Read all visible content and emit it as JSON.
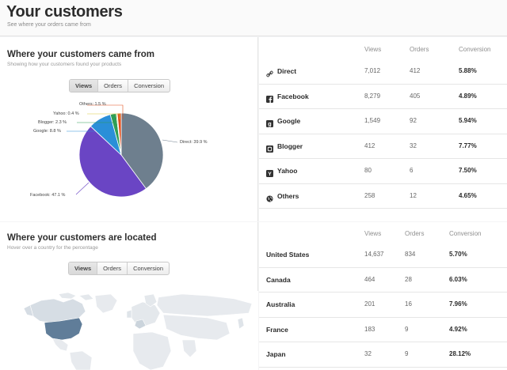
{
  "header": {
    "title": "Your customers",
    "subtitle": "See where your orders came from"
  },
  "sources": {
    "title": "Where your customers came from",
    "subtitle": "Showing how your customers found your products",
    "toggle": [
      "Views",
      "Orders",
      "Conversion"
    ],
    "active_toggle": "Views",
    "pie_labels": {
      "others": "Others: 1.5 %",
      "yahoo": "Yahoo: 0.4 %",
      "blogger": "Blogger: 2.3 %",
      "google": "Google: 8.8 %",
      "direct": "Direct: 39.9 %",
      "facebook": "Facebook: 47.1 %"
    },
    "columns": [
      "Views",
      "Orders",
      "Conversion"
    ],
    "rows": [
      {
        "name": "Direct",
        "icon": "link-icon",
        "views": "7,012",
        "orders": "412",
        "conversion": "5.88%"
      },
      {
        "name": "Facebook",
        "icon": "facebook-icon",
        "views": "8,279",
        "orders": "405",
        "conversion": "4.89%"
      },
      {
        "name": "Google",
        "icon": "google-icon",
        "views": "1,549",
        "orders": "92",
        "conversion": "5.94%"
      },
      {
        "name": "Blogger",
        "icon": "blogger-icon",
        "views": "412",
        "orders": "32",
        "conversion": "7.77%"
      },
      {
        "name": "Yahoo",
        "icon": "yahoo-icon",
        "views": "80",
        "orders": "6",
        "conversion": "7.50%"
      },
      {
        "name": "Others",
        "icon": "globe-icon",
        "views": "258",
        "orders": "12",
        "conversion": "4.65%"
      }
    ]
  },
  "locations": {
    "title": "Where your customers are located",
    "subtitle": "Hover over a country for the percentage",
    "toggle": [
      "Views",
      "Orders",
      "Conversion"
    ],
    "active_toggle": "Views",
    "columns": [
      "Views",
      "Orders",
      "Conversion"
    ],
    "rows": [
      {
        "name": "United States",
        "views": "14,637",
        "orders": "834",
        "conversion": "5.70%"
      },
      {
        "name": "Canada",
        "views": "464",
        "orders": "28",
        "conversion": "6.03%"
      },
      {
        "name": "Australia",
        "views": "201",
        "orders": "16",
        "conversion": "7.96%"
      },
      {
        "name": "France",
        "views": "183",
        "orders": "9",
        "conversion": "4.92%"
      },
      {
        "name": "Japan",
        "views": "32",
        "orders": "9",
        "conversion": "28.12%"
      }
    ]
  },
  "chart_data": {
    "type": "pie",
    "categories": [
      "Direct",
      "Facebook",
      "Google",
      "Blogger",
      "Yahoo",
      "Others"
    ],
    "values": [
      39.9,
      47.1,
      8.8,
      2.3,
      0.4,
      1.5
    ],
    "colors": [
      "#6e7f8e",
      "#6a45c4",
      "#2a8fd8",
      "#2f9e55",
      "#d9c93a",
      "#e24e1b"
    ]
  }
}
